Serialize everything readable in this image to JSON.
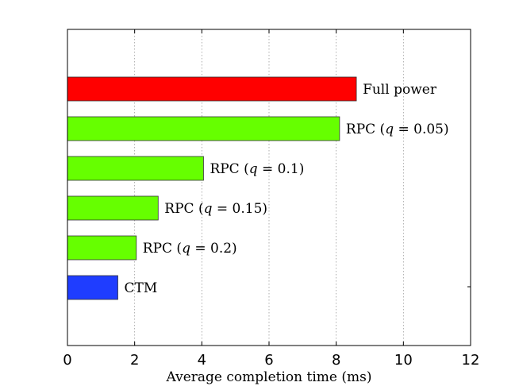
{
  "chart_data": {
    "type": "bar",
    "orientation": "horizontal",
    "title": "",
    "xlabel": "Average completion time (ms)",
    "ylabel": "",
    "xlim": [
      0,
      12
    ],
    "xticks": [
      0,
      2,
      4,
      6,
      8,
      10,
      12
    ],
    "grid": "x-dotted",
    "bars": [
      {
        "label": "Full power",
        "value": 8.6,
        "color": "#ff0000"
      },
      {
        "label": "RPC (q = 0.05)",
        "value": 8.1,
        "color": "#66ff00"
      },
      {
        "label": "RPC (q = 0.1)",
        "value": 4.05,
        "color": "#66ff00"
      },
      {
        "label": "RPC (q = 0.15)",
        "value": 2.7,
        "color": "#66ff00"
      },
      {
        "label": "RPC (q = 0.2)",
        "value": 2.05,
        "color": "#66ff00"
      },
      {
        "label": "CTM",
        "value": 1.5,
        "color": "#1f3dff"
      }
    ]
  }
}
